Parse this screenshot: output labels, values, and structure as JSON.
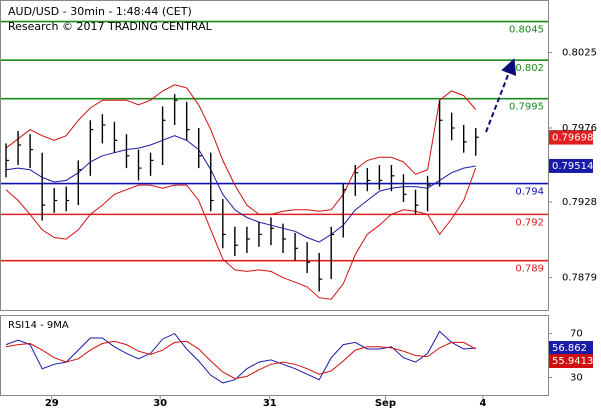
{
  "chart_data": [
    {
      "type": "ohlc",
      "title": "AUD/USD - 30min - 1:48:44 (CET)",
      "subtitle": "Research © 2017 TRADING CENTRAL",
      "xlim": [
        -0.5,
        45
      ],
      "x": [
        0,
        1,
        2,
        3,
        4,
        5,
        6,
        7,
        8,
        9,
        10,
        11,
        12,
        13,
        14,
        15,
        16,
        17,
        18,
        19,
        20,
        21,
        22,
        23,
        24,
        25,
        26,
        27,
        28,
        29,
        30,
        31,
        32,
        33,
        34,
        35,
        36,
        37,
        38,
        39
      ],
      "xticks": [
        {
          "value": 3.8,
          "label": "29"
        },
        {
          "value": 12.8,
          "label": "30"
        },
        {
          "value": 21.9,
          "label": "31"
        },
        {
          "value": 31.5,
          "label": "Sep"
        },
        {
          "value": 39.6,
          "label": "4"
        }
      ],
      "ylim": [
        0.7858,
        0.8059
      ],
      "yticks": [
        0.8025,
        0.7976,
        0.7928,
        0.7879
      ],
      "bar_color": "#000000",
      "high": [
        0.7966,
        0.7974,
        0.7972,
        0.796,
        0.7937,
        0.7938,
        0.7955,
        0.7981,
        0.7985,
        0.798,
        0.7972,
        0.7962,
        0.796,
        0.799,
        0.7998,
        0.7993,
        0.7976,
        0.796,
        0.793,
        0.7912,
        0.7912,
        0.7915,
        0.7918,
        0.7914,
        0.7908,
        0.7902,
        0.7895,
        0.7912,
        0.794,
        0.7952,
        0.795,
        0.7952,
        0.7952,
        0.7946,
        0.7936,
        0.7945,
        0.7994,
        0.7986,
        0.7978,
        0.7976
      ],
      "low": [
        0.7944,
        0.7952,
        0.795,
        0.7916,
        0.7921,
        0.7922,
        0.7926,
        0.7945,
        0.7966,
        0.796,
        0.795,
        0.7942,
        0.7945,
        0.7952,
        0.7978,
        0.7968,
        0.795,
        0.7922,
        0.7898,
        0.7893,
        0.7895,
        0.7899,
        0.79,
        0.7895,
        0.789,
        0.7882,
        0.787,
        0.7878,
        0.7905,
        0.7932,
        0.7935,
        0.7936,
        0.7935,
        0.7928,
        0.792,
        0.7922,
        0.7938,
        0.7968,
        0.796,
        0.7958
      ],
      "close": [
        0.7955,
        0.7965,
        0.7962,
        0.7926,
        0.7929,
        0.7929,
        0.7949,
        0.7975,
        0.7978,
        0.7968,
        0.7958,
        0.795,
        0.7955,
        0.7981,
        0.7994,
        0.7975,
        0.7958,
        0.7929,
        0.7907,
        0.79,
        0.7904,
        0.7907,
        0.7911,
        0.7904,
        0.7898,
        0.7889,
        0.7878,
        0.7907,
        0.7936,
        0.7947,
        0.7942,
        0.7942,
        0.7945,
        0.7933,
        0.7926,
        0.7939,
        0.7981,
        0.7976,
        0.7967,
        0.797
      ],
      "close_color": "#000000",
      "overlays": [
        {
          "color": "#d01010",
          "values": [
            0.7963,
            0.7969,
            0.7975,
            0.7971,
            0.7968,
            0.7971,
            0.7981,
            0.7989,
            0.7994,
            0.7994,
            0.7994,
            0.7991,
            0.7994,
            0.8,
            0.8004,
            0.8002,
            0.7991,
            0.7975,
            0.7955,
            0.7939,
            0.7926,
            0.792,
            0.792,
            0.7922,
            0.7923,
            0.7923,
            0.7922,
            0.7923,
            0.7933,
            0.7949,
            0.7955,
            0.7957,
            0.7957,
            0.7954,
            0.7946,
            0.7949,
            0.7994,
            0.8,
            0.7997,
            0.7988
          ]
        },
        {
          "color": "#1a1aa8",
          "values": [
            0.7949,
            0.795,
            0.7949,
            0.7944,
            0.7941,
            0.7942,
            0.7947,
            0.7954,
            0.7958,
            0.796,
            0.7962,
            0.7963,
            0.7965,
            0.7968,
            0.7971,
            0.7968,
            0.7962,
            0.7949,
            0.7933,
            0.7923,
            0.7918,
            0.7915,
            0.7913,
            0.7911,
            0.7909,
            0.7905,
            0.7902,
            0.7907,
            0.7913,
            0.7923,
            0.7929,
            0.7935,
            0.7937,
            0.7938,
            0.7938,
            0.7937,
            0.7942,
            0.7947,
            0.795,
            0.79514
          ]
        },
        {
          "color": "#d01010",
          "values": [
            0.7936,
            0.7929,
            0.792,
            0.791,
            0.7905,
            0.7904,
            0.791,
            0.792,
            0.7926,
            0.7933,
            0.7936,
            0.7939,
            0.7939,
            0.7937,
            0.7939,
            0.7939,
            0.7929,
            0.791,
            0.7891,
            0.7884,
            0.7883,
            0.7884,
            0.7883,
            0.7879,
            0.7876,
            0.7873,
            0.7866,
            0.7865,
            0.7875,
            0.7894,
            0.7907,
            0.7913,
            0.792,
            0.7923,
            0.7922,
            0.792,
            0.7907,
            0.7917,
            0.7929,
            0.795
          ]
        }
      ],
      "levels": [
        {
          "value": 0.8045,
          "color": "#1a8a1a"
        },
        {
          "value": 0.802,
          "color": "#1a8a1a"
        },
        {
          "value": 0.7995,
          "color": "#1a8a1a"
        },
        {
          "value": 0.794,
          "color": "#1010b0"
        },
        {
          "value": 0.792,
          "color": "#e02020"
        },
        {
          "value": 0.789,
          "color": "#e02020"
        }
      ],
      "marker": {
        "value": 0.79698,
        "color": "#e02020"
      }
    },
    {
      "type": "line",
      "title": "RSI14 - 9MA",
      "ylim": [
        14,
        87
      ],
      "yticks": [
        70,
        30
      ],
      "series": [
        {
          "color": "#1a1aa8",
          "values": [
            60,
            64,
            60,
            38,
            42,
            44,
            55,
            66,
            66,
            58,
            52,
            47,
            52,
            65,
            70,
            56,
            45,
            32,
            25,
            28,
            38,
            44,
            46,
            42,
            38,
            33,
            28,
            48,
            60,
            62,
            56,
            56,
            58,
            48,
            44,
            52,
            72,
            62,
            56,
            56.862
          ]
        },
        {
          "color": "#d01010",
          "values": [
            58,
            60,
            61,
            55,
            48,
            44,
            47,
            55,
            61,
            63,
            60,
            54,
            51,
            55,
            62,
            63,
            56,
            45,
            35,
            29,
            31,
            37,
            42,
            44,
            42,
            38,
            33,
            36,
            45,
            55,
            58,
            58,
            57,
            54,
            50,
            49,
            57,
            62,
            62,
            55.9413
          ]
        }
      ]
    }
  ]
}
